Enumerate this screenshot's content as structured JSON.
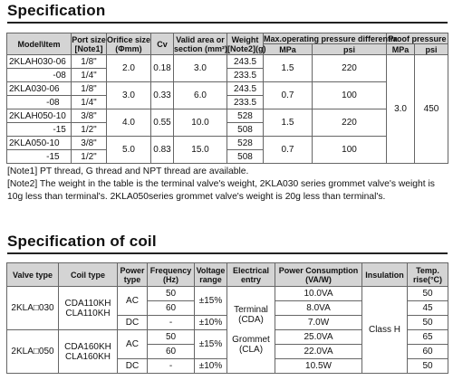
{
  "spec": {
    "title": "Specification",
    "headers": {
      "model": "Model\\Item",
      "port": "Port size",
      "port_note": "[Note1]",
      "orifice": "Orifice size",
      "orifice_unit": "(Φmm)",
      "cv": "Cv",
      "valid": "Valid area or",
      "valid2": "section (mm²)",
      "weight": "Weight",
      "weight_note": "[Note2](g)",
      "maxop": "Max.operating pressure differentia",
      "proof": "Proof pressure",
      "mpa": "MPa",
      "psi": "psi"
    },
    "groups": [
      {
        "model": "2KLAH030",
        "orifice": "2.0",
        "cv": "0.18",
        "area": "3.0",
        "mpa": "1.5",
        "psi": "220",
        "rows": [
          {
            "suffix": "-06",
            "port": "1/8\"",
            "weight": "243.5"
          },
          {
            "suffix": "-08",
            "port": "1/4\"",
            "weight": "233.5"
          }
        ]
      },
      {
        "model": "2KLA030",
        "orifice": "3.0",
        "cv": "0.33",
        "area": "6.0",
        "mpa": "0.7",
        "psi": "100",
        "rows": [
          {
            "suffix": "-06",
            "port": "1/8\"",
            "weight": "243.5"
          },
          {
            "suffix": "-08",
            "port": "1/4\"",
            "weight": "233.5"
          }
        ]
      },
      {
        "model": "2KLAH050",
        "orifice": "4.0",
        "cv": "0.55",
        "area": "10.0",
        "mpa": "1.5",
        "psi": "220",
        "rows": [
          {
            "suffix": "-10",
            "port": "3/8\"",
            "weight": "528"
          },
          {
            "suffix": "-15",
            "port": "1/2\"",
            "weight": "508"
          }
        ]
      },
      {
        "model": "2KLA050",
        "orifice": "5.0",
        "cv": "0.83",
        "area": "15.0",
        "mpa": "0.7",
        "psi": "100",
        "rows": [
          {
            "suffix": "-10",
            "port": "3/8\"",
            "weight": "528"
          },
          {
            "suffix": "-15",
            "port": "1/2\"",
            "weight": "508"
          }
        ]
      }
    ],
    "proof_mpa": "3.0",
    "proof_psi": "450",
    "note1": "[Note1] PT thread, G thread and NPT thread are available.",
    "note2": "[Note2] The weight in the table is the terminal valve's weight, 2KLA030 series grommet valve's weight is 10g less than terminal's. 2KLA050series grommet valve's weight is 20g less than terminal's."
  },
  "coil": {
    "title": "Specification of coil",
    "headers": {
      "valve_type": "Valve type",
      "coil_type": "Coil type",
      "power_type": "Power",
      "power_type2": "type",
      "freq": "Frequency",
      "freq2": "(Hz)",
      "vrange": "Voltage",
      "vrange2": "range",
      "elec": "Electrical",
      "elec2": "entry",
      "consumption": "Power Consumption",
      "consumption2": "(VA/W)",
      "insulation": "Insulation",
      "temp": "Temp.",
      "temp2": "rise(°C)"
    },
    "groups": [
      {
        "valve": "2KLA□030",
        "coil1": "CDA110KH",
        "coil2": "CLA110KH",
        "ac": "AC",
        "dc": "DC",
        "ac_range": "±15%",
        "dc_range": "±10%",
        "rows": [
          {
            "freq": "50",
            "consumption": "10.0VA",
            "temp": "50"
          },
          {
            "freq": "60",
            "consumption": "8.0VA",
            "temp": "45"
          },
          {
            "freq": "-",
            "consumption": "7.0W",
            "temp": "50"
          }
        ]
      },
      {
        "valve": "2KLA□050",
        "coil1": "CDA160KH",
        "coil2": "CLA160KH",
        "ac": "AC",
        "dc": "DC",
        "ac_range": "±15%",
        "dc_range": "±10%",
        "rows": [
          {
            "freq": "50",
            "consumption": "25.0VA",
            "temp": "65"
          },
          {
            "freq": "60",
            "consumption": "22.0VA",
            "temp": "60"
          },
          {
            "freq": "-",
            "consumption": "10.5W",
            "temp": "50"
          }
        ]
      }
    ],
    "elec1": "Terminal",
    "elec2": "(CDA)",
    "elec3": "Grommet",
    "elec4": "(CLA)",
    "insulation": "Class H"
  }
}
